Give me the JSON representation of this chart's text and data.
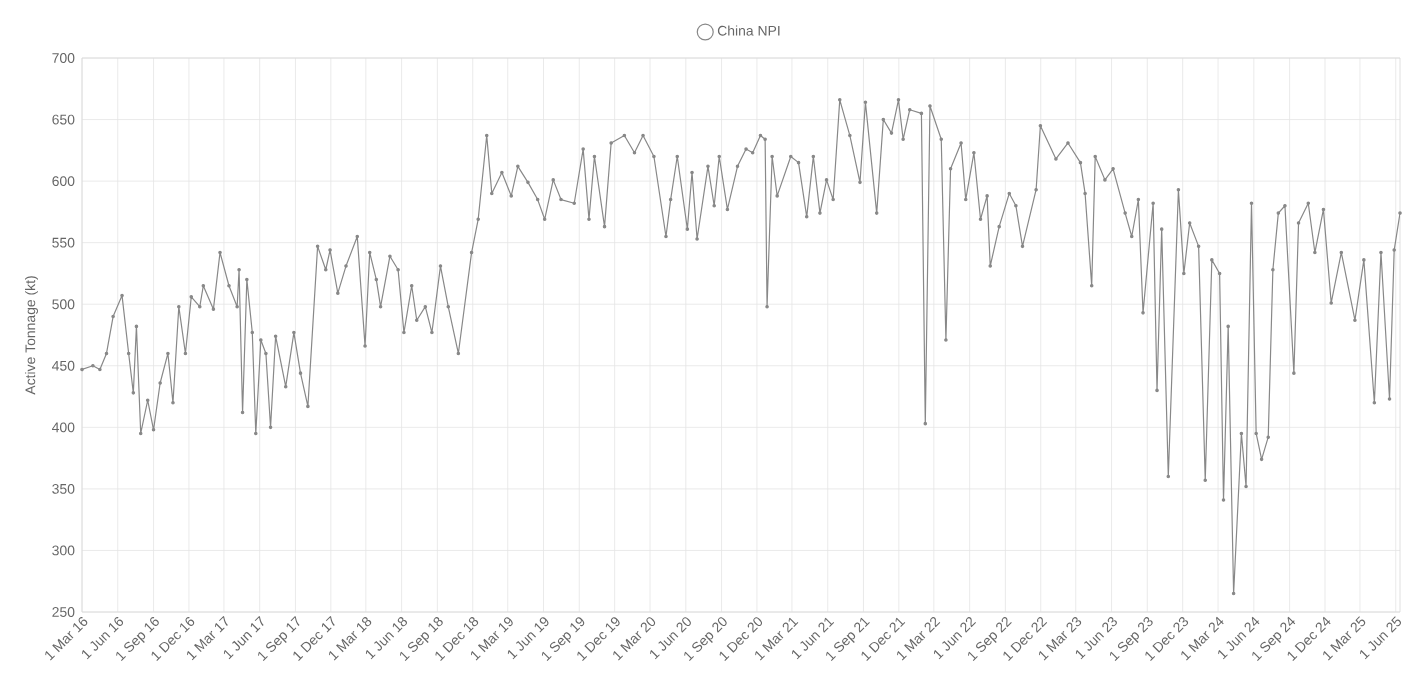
{
  "chart_data": {
    "type": "line",
    "ylabel": "Active Tonnage (kt)",
    "legend": "top",
    "grid": true,
    "marker": "circle",
    "line_style": "solid",
    "xlim": [
      "2016-03-01",
      "2025-06-12"
    ],
    "xticks": [
      {
        "value": "2016-03-01",
        "label": "1 Mar 16"
      },
      {
        "value": "2016-06-01",
        "label": "1 Jun 16"
      },
      {
        "value": "2016-09-01",
        "label": "1 Sep 16"
      },
      {
        "value": "2016-12-01",
        "label": "1 Dec 16"
      },
      {
        "value": "2017-03-01",
        "label": "1 Mar 17"
      },
      {
        "value": "2017-06-01",
        "label": "1 Jun 17"
      },
      {
        "value": "2017-09-01",
        "label": "1 Sep 17"
      },
      {
        "value": "2017-12-01",
        "label": "1 Dec 17"
      },
      {
        "value": "2018-03-01",
        "label": "1 Mar 18"
      },
      {
        "value": "2018-06-01",
        "label": "1 Jun 18"
      },
      {
        "value": "2018-09-01",
        "label": "1 Sep 18"
      },
      {
        "value": "2018-12-01",
        "label": "1 Dec 18"
      },
      {
        "value": "2019-03-01",
        "label": "1 Mar 19"
      },
      {
        "value": "2019-06-01",
        "label": "1 Jun 19"
      },
      {
        "value": "2019-09-01",
        "label": "1 Sep 19"
      },
      {
        "value": "2019-12-01",
        "label": "1 Dec 19"
      },
      {
        "value": "2020-03-01",
        "label": "1 Mar 20"
      },
      {
        "value": "2020-06-01",
        "label": "1 Jun 20"
      },
      {
        "value": "2020-09-01",
        "label": "1 Sep 20"
      },
      {
        "value": "2020-12-01",
        "label": "1 Dec 20"
      },
      {
        "value": "2021-03-01",
        "label": "1 Mar 21"
      },
      {
        "value": "2021-06-01",
        "label": "1 Jun 21"
      },
      {
        "value": "2021-09-01",
        "label": "1 Sep 21"
      },
      {
        "value": "2021-12-01",
        "label": "1 Dec 21"
      },
      {
        "value": "2022-03-01",
        "label": "1 Mar 22"
      },
      {
        "value": "2022-06-01",
        "label": "1 Jun 22"
      },
      {
        "value": "2022-09-01",
        "label": "1 Sep 22"
      },
      {
        "value": "2022-12-01",
        "label": "1 Dec 22"
      },
      {
        "value": "2023-03-01",
        "label": "1 Mar 23"
      },
      {
        "value": "2023-06-01",
        "label": "1 Jun 23"
      },
      {
        "value": "2023-09-01",
        "label": "1 Sep 23"
      },
      {
        "value": "2023-12-01",
        "label": "1 Dec 23"
      },
      {
        "value": "2024-03-01",
        "label": "1 Mar 24"
      },
      {
        "value": "2024-06-01",
        "label": "1 Jun 24"
      },
      {
        "value": "2024-09-01",
        "label": "1 Sep 24"
      },
      {
        "value": "2024-12-01",
        "label": "1 Dec 24"
      },
      {
        "value": "2025-03-01",
        "label": "1 Mar 25"
      },
      {
        "value": "2025-06-01",
        "label": "1 Jun 25"
      }
    ],
    "ylim": [
      250,
      700
    ],
    "yticks": [
      250,
      300,
      350,
      400,
      450,
      500,
      550,
      600,
      650,
      700
    ],
    "x": [
      "2016-03-01",
      "2016-03-29",
      "2016-04-16",
      "2016-05-03",
      "2016-05-20",
      "2016-06-12",
      "2016-06-29",
      "2016-07-11",
      "2016-07-19",
      "2016-07-30",
      "2016-08-17",
      "2016-09-01",
      "2016-09-18",
      "2016-10-08",
      "2016-10-21",
      "2016-11-05",
      "2016-11-22",
      "2016-12-07",
      "2016-12-29",
      "2017-01-07",
      "2017-02-02",
      "2017-02-19",
      "2017-03-14",
      "2017-04-04",
      "2017-04-09",
      "2017-04-18",
      "2017-04-29",
      "2017-05-13",
      "2017-05-22",
      "2017-06-04",
      "2017-06-17",
      "2017-06-29",
      "2017-07-12",
      "2017-08-07",
      "2017-08-28",
      "2017-09-14",
      "2017-10-03",
      "2017-10-28",
      "2017-11-18",
      "2017-11-29",
      "2017-12-19",
      "2018-01-09",
      "2018-02-07",
      "2018-02-27",
      "2018-03-11",
      "2018-03-28",
      "2018-04-08",
      "2018-05-02",
      "2018-05-23",
      "2018-06-07",
      "2018-06-27",
      "2018-07-10",
      "2018-08-01",
      "2018-08-18",
      "2018-09-09",
      "2018-09-29",
      "2018-10-25",
      "2018-11-28",
      "2018-12-15",
      "2019-01-06",
      "2019-01-19",
      "2019-02-14",
      "2019-03-10",
      "2019-03-27",
      "2019-04-22",
      "2019-05-17",
      "2019-06-04",
      "2019-06-26",
      "2019-07-16",
      "2019-08-19",
      "2019-09-11",
      "2019-09-26",
      "2019-10-10",
      "2019-11-05",
      "2019-11-22",
      "2019-12-26",
      "2020-01-21",
      "2020-02-12",
      "2020-03-11",
      "2020-04-11",
      "2020-04-23",
      "2020-05-10",
      "2020-06-05",
      "2020-06-17",
      "2020-06-30",
      "2020-07-28",
      "2020-08-13",
      "2020-08-26",
      "2020-09-16",
      "2020-10-12",
      "2020-11-03",
      "2020-11-20",
      "2020-12-10",
      "2020-12-22",
      "2020-12-27",
      "2021-01-09",
      "2021-01-22",
      "2021-02-26",
      "2021-03-18",
      "2021-04-08",
      "2021-04-25",
      "2021-05-12",
      "2021-05-29",
      "2021-06-15",
      "2021-07-02",
      "2021-07-28",
      "2021-08-23",
      "2021-09-06",
      "2021-10-05",
      "2021-10-22",
      "2021-11-12",
      "2021-11-30",
      "2021-12-12",
      "2021-12-29",
      "2022-01-28",
      "2022-02-07",
      "2022-02-19",
      "2022-03-20",
      "2022-04-01",
      "2022-04-13",
      "2022-05-10",
      "2022-05-22",
      "2022-06-12",
      "2022-06-29",
      "2022-07-16",
      "2022-07-24",
      "2022-08-16",
      "2022-09-11",
      "2022-09-28",
      "2022-10-15",
      "2022-11-19",
      "2022-11-30",
      "2023-01-09",
      "2023-02-09",
      "2023-03-13",
      "2023-03-25",
      "2023-04-11",
      "2023-04-20",
      "2023-05-15",
      "2023-06-05",
      "2023-07-06",
      "2023-07-23",
      "2023-08-09",
      "2023-08-21",
      "2023-09-16",
      "2023-09-26",
      "2023-10-08",
      "2023-10-25",
      "2023-11-20",
      "2023-12-04",
      "2023-12-19",
      "2024-01-11",
      "2024-01-28",
      "2024-02-14",
      "2024-03-05",
      "2024-03-15",
      "2024-03-27",
      "2024-04-10",
      "2024-04-30",
      "2024-05-12",
      "2024-05-26",
      "2024-06-07",
      "2024-06-21",
      "2024-07-08",
      "2024-07-20",
      "2024-08-03",
      "2024-08-20",
      "2024-09-12",
      "2024-09-24",
      "2024-10-19",
      "2024-11-05",
      "2024-11-27",
      "2024-12-17",
      "2025-01-12",
      "2025-02-16",
      "2025-03-11",
      "2025-04-07",
      "2025-04-24",
      "2025-05-16",
      "2025-05-28",
      "2025-06-12"
    ],
    "series": [
      {
        "name": "China NPI",
        "color": "#888888",
        "values": [
          447,
          450,
          447,
          460,
          490,
          507,
          460,
          428,
          482,
          395,
          422,
          398,
          436,
          460,
          420,
          498,
          460,
          506,
          498,
          515,
          496,
          542,
          515,
          498,
          528,
          412,
          520,
          477,
          395,
          471,
          460,
          400,
          474,
          433,
          477,
          444,
          417,
          547,
          528,
          544,
          509,
          531,
          555,
          466,
          542,
          520,
          498,
          539,
          528,
          477,
          515,
          487,
          498,
          477,
          531,
          498,
          460,
          542,
          569,
          637,
          590,
          607,
          588,
          612,
          599,
          585,
          569,
          601,
          585,
          582,
          626,
          569,
          620,
          563,
          631,
          637,
          623,
          637,
          620,
          555,
          585,
          620,
          561,
          607,
          553,
          612,
          580,
          620,
          577,
          612,
          626,
          623,
          637,
          634,
          498,
          620,
          588,
          620,
          615,
          571,
          620,
          574,
          601,
          585,
          666,
          637,
          599,
          664,
          574,
          650,
          639,
          666,
          634,
          658,
          655,
          403,
          661,
          634,
          471,
          610,
          631,
          585,
          623,
          569,
          588,
          531,
          563,
          590,
          580,
          547,
          593,
          645,
          618,
          631,
          615,
          590,
          515,
          620,
          601,
          610,
          574,
          555,
          585,
          493,
          582,
          430,
          561,
          360,
          593,
          525,
          566,
          547,
          357,
          536,
          525,
          341,
          482,
          265,
          395,
          352,
          582,
          395,
          374,
          392,
          528,
          574,
          580,
          444,
          566,
          582,
          542,
          577,
          501,
          542,
          487,
          536,
          420,
          542,
          423,
          544,
          574
        ]
      }
    ]
  }
}
